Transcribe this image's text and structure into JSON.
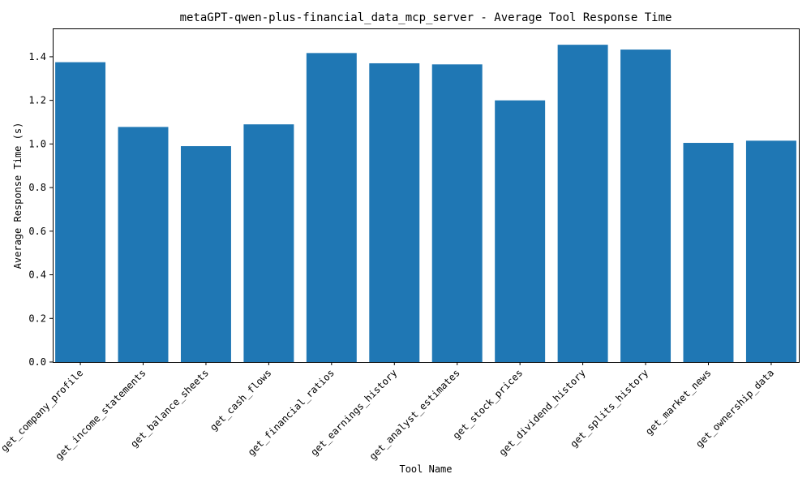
{
  "chart_data": {
    "type": "bar",
    "title": "metaGPT-qwen-plus-financial_data_mcp_server - Average Tool Response Time",
    "xlabel": "Tool Name",
    "ylabel": "Average Response Time (s)",
    "categories": [
      "get_company_profile",
      "get_income_statements",
      "get_balance_sheets",
      "get_cash_flows",
      "get_financial_ratios",
      "get_earnings_history",
      "get_analyst_estimates",
      "get_stock_prices",
      "get_dividend_history",
      "get_splits_history",
      "get_market_news",
      "get_ownership_data"
    ],
    "values": [
      1.375,
      1.078,
      0.99,
      1.09,
      1.417,
      1.37,
      1.365,
      1.2,
      1.455,
      1.433,
      1.005,
      1.015
    ],
    "ylim": [
      0,
      1.53
    ],
    "yticks": [
      0.0,
      0.2,
      0.4,
      0.6,
      0.8,
      1.0,
      1.2,
      1.4
    ],
    "bar_color": "#1f77b4",
    "grid": false,
    "legend": "none"
  }
}
